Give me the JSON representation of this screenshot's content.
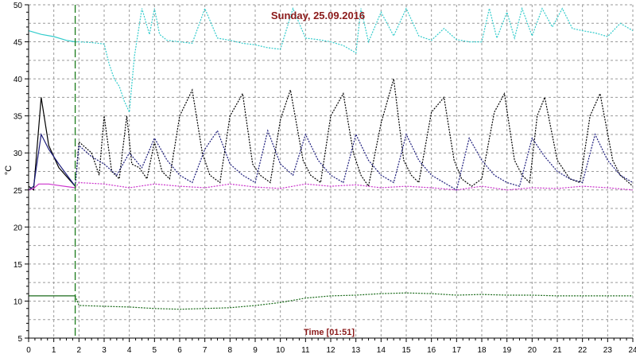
{
  "chart_data": {
    "type": "line",
    "title": "Sunday, 25.09.2016",
    "ylabel": "°C",
    "xlabel": "Time [01:51]",
    "xlim": [
      0,
      24
    ],
    "ylim": [
      5,
      50
    ],
    "x_ticks": [
      "0",
      "1",
      "2",
      "3",
      "4",
      "5",
      "6",
      "7",
      "8",
      "9",
      "10",
      "11",
      "12",
      "13",
      "14",
      "15",
      "16",
      "17",
      "18",
      "19",
      "20",
      "21",
      "22",
      "23",
      "24"
    ],
    "y_ticks": [
      "5",
      "10",
      "15",
      "20",
      "25",
      "30",
      "35",
      "40",
      "45",
      "50"
    ],
    "grid": true,
    "marker_time": 1.85,
    "colors": {
      "grid": "#9a9a9a",
      "axis": "#000000",
      "marker": "#1a7a1a",
      "title": "#8b1a1a"
    },
    "series": [
      {
        "color": "#33cccc",
        "x": [
          0.0,
          0.5,
          1.0,
          1.5,
          1.85,
          2.0,
          2.5,
          3.0,
          3.2,
          3.4,
          3.6,
          3.8,
          4.0,
          4.2,
          4.5,
          4.8,
          5.0,
          5.2,
          5.5,
          6.0,
          6.5,
          7.0,
          7.5,
          8.0,
          8.5,
          9.0,
          9.5,
          10.0,
          10.5,
          11.0,
          11.5,
          12.0,
          12.5,
          13.0,
          13.2,
          13.5,
          14.0,
          14.5,
          15.0,
          15.5,
          16.0,
          16.5,
          17.0,
          17.5,
          18.0,
          18.3,
          18.6,
          19.0,
          19.3,
          19.6,
          20.0,
          20.4,
          20.8,
          21.2,
          21.6,
          22.0,
          22.5,
          23.0,
          23.5,
          24.0
        ],
        "y": [
          46.5,
          46.0,
          45.7,
          45.2,
          45.0,
          45.0,
          44.9,
          44.7,
          42.0,
          40.0,
          39.0,
          37.0,
          35.5,
          43.0,
          49.5,
          46.0,
          49.5,
          46.0,
          45.2,
          45.0,
          44.8,
          49.5,
          45.5,
          45.2,
          44.8,
          44.6,
          44.2,
          44.0,
          49.5,
          45.5,
          45.3,
          45.0,
          44.5,
          43.5,
          49.5,
          45.0,
          49.0,
          45.8,
          49.5,
          45.8,
          45.2,
          46.8,
          45.3,
          45.0,
          45.0,
          49.5,
          45.5,
          49.0,
          45.5,
          49.5,
          45.8,
          49.5,
          47.0,
          49.5,
          46.8,
          46.5,
          46.2,
          45.7,
          47.5,
          46.5
        ]
      },
      {
        "color": "#000000",
        "x": [
          0.0,
          0.2,
          0.5,
          0.8,
          1.2,
          1.85,
          2.0,
          2.5,
          2.8,
          3.0,
          3.3,
          3.6,
          3.9,
          4.1,
          4.4,
          4.7,
          5.0,
          5.3,
          5.6,
          6.0,
          6.5,
          6.9,
          7.2,
          7.6,
          8.0,
          8.5,
          8.9,
          9.2,
          9.6,
          10.0,
          10.4,
          10.9,
          11.2,
          11.6,
          12.0,
          12.5,
          12.9,
          13.2,
          13.5,
          14.0,
          14.5,
          14.9,
          15.2,
          15.5,
          16.0,
          16.5,
          16.9,
          17.2,
          17.6,
          18.0,
          18.5,
          18.9,
          19.3,
          19.6,
          19.9,
          20.2,
          20.5,
          21.0,
          21.5,
          21.9,
          22.3,
          22.7,
          23.2,
          23.5,
          24.0
        ],
        "y": [
          25.5,
          25.0,
          37.5,
          31.0,
          28.0,
          25.5,
          31.5,
          30.0,
          27.0,
          35.0,
          27.5,
          26.5,
          35.0,
          28.5,
          28.0,
          26.5,
          31.5,
          27.5,
          26.5,
          35.0,
          38.5,
          30.0,
          27.0,
          26.0,
          35.0,
          38.0,
          28.5,
          27.0,
          26.0,
          34.5,
          38.5,
          29.0,
          27.0,
          26.0,
          35.0,
          38.0,
          30.0,
          27.0,
          25.5,
          34.0,
          40.0,
          29.0,
          27.0,
          26.0,
          35.5,
          37.5,
          29.0,
          26.5,
          25.5,
          26.5,
          35.5,
          38.0,
          29.0,
          27.0,
          26.0,
          35.0,
          37.5,
          29.0,
          26.5,
          26.0,
          35.0,
          38.0,
          29.0,
          27.0,
          25.5
        ]
      },
      {
        "color": "#1a1a7a",
        "x": [
          0.0,
          0.2,
          0.5,
          0.8,
          1.2,
          1.85,
          2.0,
          2.5,
          3.0,
          3.5,
          4.0,
          4.5,
          5.0,
          5.5,
          6.0,
          6.5,
          7.0,
          7.5,
          8.0,
          8.5,
          9.0,
          9.5,
          10.0,
          10.5,
          11.0,
          11.5,
          12.0,
          12.5,
          13.0,
          13.5,
          14.0,
          14.5,
          15.0,
          15.5,
          16.0,
          16.5,
          17.0,
          17.5,
          18.0,
          18.5,
          19.0,
          19.5,
          20.0,
          20.5,
          21.0,
          21.5,
          22.0,
          22.5,
          23.0,
          23.5,
          24.0
        ],
        "y": [
          25.0,
          25.5,
          32.5,
          30.5,
          28.5,
          25.5,
          31.0,
          29.5,
          28.5,
          27.0,
          30.0,
          28.0,
          32.0,
          29.0,
          27.0,
          26.0,
          30.5,
          33.0,
          28.5,
          27.0,
          26.0,
          33.0,
          28.5,
          27.0,
          32.5,
          29.0,
          27.0,
          26.0,
          32.5,
          29.0,
          27.0,
          26.0,
          32.5,
          29.0,
          27.0,
          26.0,
          25.0,
          32.0,
          29.0,
          27.0,
          26.0,
          25.5,
          32.0,
          29.5,
          27.5,
          26.5,
          26.0,
          32.5,
          29.0,
          27.0,
          26.0
        ]
      },
      {
        "color": "#cc33cc",
        "x": [
          0.0,
          0.2,
          0.4,
          0.8,
          1.2,
          1.85,
          2.0,
          3.0,
          4.0,
          5.0,
          6.0,
          7.0,
          8.0,
          9.0,
          10.0,
          11.0,
          12.0,
          13.0,
          14.0,
          15.0,
          16.0,
          17.0,
          18.0,
          19.0,
          20.0,
          21.0,
          22.0,
          23.0,
          24.0
        ],
        "y": [
          25.0,
          25.2,
          25.8,
          25.8,
          25.6,
          25.3,
          26.0,
          25.8,
          25.3,
          25.8,
          25.5,
          25.3,
          25.8,
          25.4,
          25.2,
          25.8,
          25.5,
          25.7,
          25.3,
          25.5,
          25.3,
          25.0,
          25.5,
          25.0,
          25.3,
          25.2,
          25.5,
          25.3,
          25.0
        ]
      },
      {
        "color": "#1a6b1a",
        "x": [
          0.0,
          0.5,
          1.0,
          1.5,
          1.85,
          2.0,
          3.0,
          4.0,
          5.0,
          6.0,
          7.0,
          8.0,
          9.0,
          10.0,
          11.0,
          12.0,
          13.0,
          14.0,
          15.0,
          16.0,
          17.0,
          18.0,
          19.0,
          20.0,
          21.0,
          22.0,
          23.0,
          24.0
        ],
        "y": [
          10.7,
          10.7,
          10.7,
          10.7,
          10.7,
          9.4,
          9.3,
          9.2,
          9.0,
          8.9,
          9.0,
          9.1,
          9.4,
          9.8,
          10.4,
          10.7,
          10.8,
          11.0,
          11.1,
          11.0,
          10.8,
          10.9,
          10.8,
          10.8,
          10.7,
          10.7,
          10.7,
          10.7
        ]
      }
    ]
  }
}
